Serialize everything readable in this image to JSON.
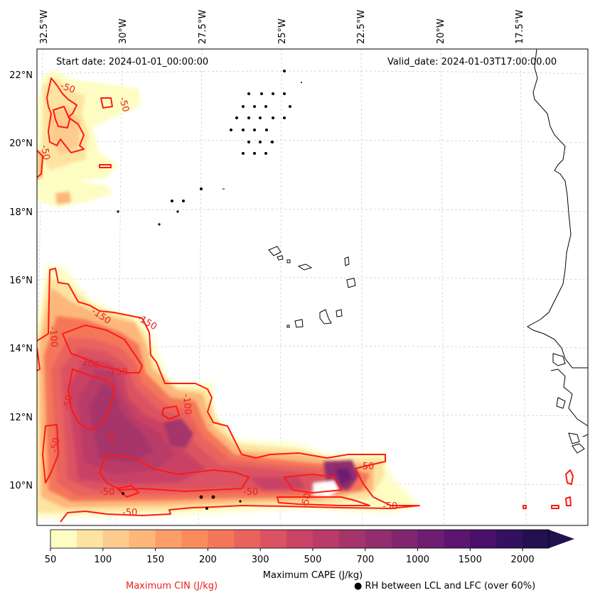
{
  "header": {
    "start_date": "Start date: 2024-01-01_00:00:00",
    "valid_date": "Valid_date: 2024-01-03T17:00:00.00"
  },
  "lon_labels": [
    "32.5°W",
    "30°W",
    "27.5°W",
    "25°W",
    "22.5°W",
    "20°W",
    "17.5°W"
  ],
  "lat_labels": [
    "22°N",
    "20°N",
    "18°N",
    "16°N",
    "14°N",
    "12°N",
    "10°N"
  ],
  "cin_labels": [
    "-50",
    "-50",
    "-50",
    "-100",
    "-150",
    "-150",
    "-100",
    "-150",
    "-50",
    "-100",
    "-50",
    "-50",
    "-50",
    "-50",
    "-50",
    "-50",
    "-50",
    "-50"
  ],
  "colorbar": {
    "label": "Maximum CAPE (J/kg)",
    "ticks": [
      "50",
      "100",
      "150",
      "200",
      "300",
      "500",
      "700",
      "1000",
      "1500",
      "2000"
    ],
    "colors": [
      "#fdfdc3",
      "#fde3a1",
      "#fdcb8e",
      "#fdb77a",
      "#fc9e69",
      "#fa8c5c",
      "#f4775a",
      "#e9635e",
      "#db5262",
      "#c94365",
      "#b93b68",
      "#a5346b",
      "#922e6e",
      "#80266f",
      "#6d1e70",
      "#5c1670",
      "#48106a",
      "#331060",
      "#21114e"
    ]
  },
  "legend": {
    "cin_label": "Maximum CIN (J/kg)",
    "rh_label": "RH between LCL and LFC (over 60%)",
    "cin_color": "#e8201e"
  }
}
